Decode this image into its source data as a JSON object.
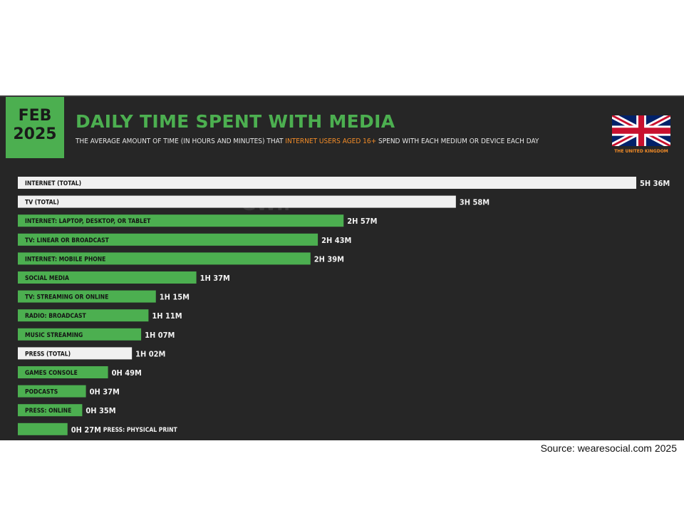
{
  "badge": {
    "month": "FEB",
    "year": "2025"
  },
  "header": {
    "title": "DAILY TIME SPENT WITH MEDIA",
    "subtitle_pre": "THE AVERAGE AMOUNT OF TIME (IN HOURS AND MINUTES) THAT ",
    "subtitle_highlight": "INTERNET USERS AGED 16+",
    "subtitle_post": " SPEND WITH EACH MEDIUM OR DEVICE EACH DAY"
  },
  "country": {
    "name": "THE UNITED KINGDOM",
    "flag_icon": "uk-flag-icon"
  },
  "watermark": {
    "brand": "GWI."
  },
  "source": "Source: wearesocial.com 2025",
  "colors": {
    "background": "#262626",
    "green": "#4caf50",
    "total": "#f0f0f0",
    "accent": "#f28c28"
  },
  "chart_data": {
    "type": "bar",
    "orientation": "horizontal",
    "unit": "minutes",
    "categories": [
      "INTERNET (TOTAL)",
      "TV (TOTAL)",
      "INTERNET: LAPTOP, DESKTOP, OR TABLET",
      "TV: LINEAR OR BROADCAST",
      "INTERNET: MOBILE PHONE",
      "SOCIAL MEDIA",
      "TV: STREAMING OR ONLINE",
      "RADIO: BROADCAST",
      "MUSIC STREAMING",
      "PRESS (TOTAL)",
      "GAMES CONSOLE",
      "PODCASTS",
      "PRESS: ONLINE",
      "PRESS: PHYSICAL PRINT"
    ],
    "values": [
      336,
      238,
      177,
      163,
      159,
      97,
      75,
      71,
      67,
      62,
      49,
      37,
      35,
      27
    ],
    "value_labels": [
      "5H 36M",
      "3H 58M",
      "2H 57M",
      "2H 43M",
      "2H 39M",
      "1H 37M",
      "1H 15M",
      "1H 11M",
      "1H 07M",
      "1H 02M",
      "0H 49M",
      "0H 37M",
      "0H 35M",
      "0H 27M"
    ],
    "is_total": [
      true,
      true,
      false,
      false,
      false,
      false,
      false,
      false,
      false,
      true,
      false,
      false,
      false,
      false
    ]
  }
}
